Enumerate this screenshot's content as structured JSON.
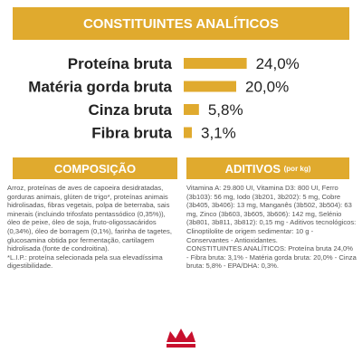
{
  "analytics": {
    "title": "CONSTITUINTES ANALÍTICOS",
    "color": "#e0aa2e",
    "rows": [
      {
        "label": "Proteína bruta",
        "value": 24.0,
        "value_label": "24,0%"
      },
      {
        "label": "Matéria gorda bruta",
        "value": 20.0,
        "value_label": "20,0%"
      },
      {
        "label": "Cinza bruta",
        "value": 5.8,
        "value_label": "5,8%"
      },
      {
        "label": "Fibra bruta",
        "value": 3.1,
        "value_label": "3,1%"
      }
    ]
  },
  "composition": {
    "title": "COMPOSIÇÃO",
    "text": "Arroz, proteínas de aves de capoeira desidratadas, gorduras animais, glúten de trigo*, proteínas animais hidrolisadas, fibras vegetais, polpa de beterraba, sais minerais (incluindo trifosfato pentassódico (0,35%)), óleo de peixe, óleo de soja, fruto-oligossacáridos (0,34%), óleo de borragem (0,1%), farinha de tagetes, glucosamina obtida por fermentação, cartilagem hidrolisada (fonte de condroitina).",
    "note": "*L.I.P.: proteína selecionada pela sua elevadíssima digestibilidade."
  },
  "additives": {
    "title": "ADITIVOS",
    "unit": "(por kg)",
    "text": "Vitamina A: 29.800 UI, Vitamina D3: 800 UI, Ferro (3b103): 56 mg, Iodo (3b201, 3b202): 5 mg, Cobre (3b405, 3b406): 13 mg, Manganês (3b502, 3b504): 63 mg, Zinco (3b603, 3b605, 3b606): 142 mg, Selénio (3b801, 3b811, 3b812): 0,15 mg - Aditivos tecnológicos: Clinoptilolite de origem sedimentar: 10 g - Conservantes - Antioxidantes.",
    "analytic": "CONSTITUINTES ANALÍTICOS: Proteína bruta 24,0% - Fibra bruta: 3,1% - Matéria gorda bruta: 20,0% - Cinza bruta: 5,8% - EPA/DHA: 0,3%."
  }
}
